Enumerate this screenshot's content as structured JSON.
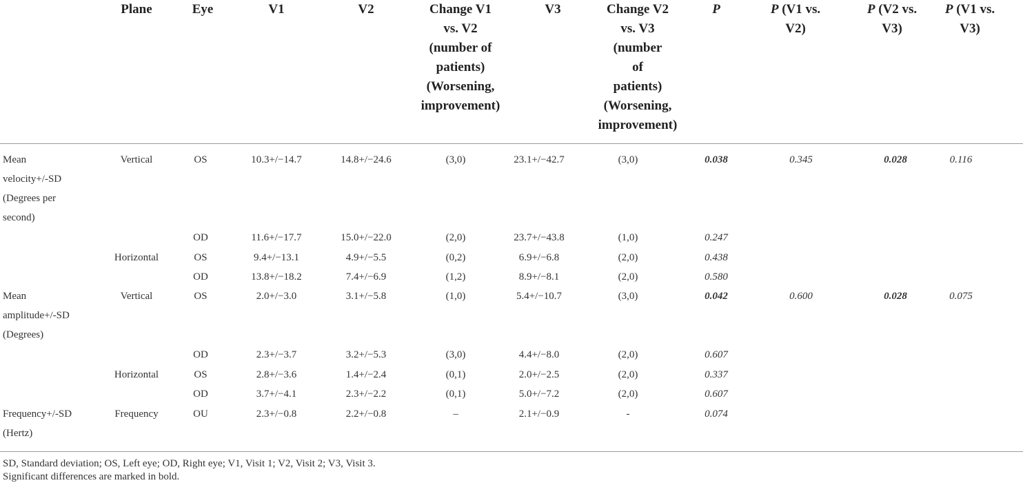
{
  "table": {
    "headers": [
      [
        "Plane"
      ],
      [
        "Eye"
      ],
      [
        "V1"
      ],
      [
        "V2"
      ],
      [
        "Change V1",
        "vs. V2",
        "(number of",
        "patients)",
        "(Worsening,",
        "improvement)"
      ],
      [
        "V3"
      ],
      [
        "Change V2",
        "vs. V3",
        "(number",
        "of",
        "patients)",
        "(Worsening,",
        "improvement)"
      ],
      [
        {
          "text": "P",
          "italic": true
        }
      ],
      [
        {
          "text": "P",
          "italic": true,
          "rest": " (V1 vs."
        },
        "V2)"
      ],
      [
        {
          "text": "P",
          "italic": true,
          "rest": " (V2 vs."
        },
        "V3)"
      ],
      [
        {
          "text": "P",
          "italic": true,
          "rest": " (V1 vs."
        },
        "V3)"
      ]
    ],
    "measures": [
      [
        "Mean",
        "velocity+/-SD",
        "(Degrees per",
        "second)"
      ],
      [
        "Mean",
        "amplitude+/-SD",
        "(Degrees)"
      ],
      [
        "Frequency+/-SD",
        "(Hertz)"
      ]
    ],
    "rows": [
      {
        "plane": "Vertical",
        "eye": "OS",
        "v1": "10.3+/−14.7",
        "v2": "14.8+/−24.6",
        "c12": "(3,0)",
        "v3": "23.1+/−42.7",
        "c23": "(3,0)",
        "p": "0.038",
        "p_bold": true,
        "p12": "0.345",
        "p23": "0.028",
        "p23_bold": true,
        "p13": "0.116"
      },
      {
        "plane": "",
        "eye": "OD",
        "v1": "11.6+/−17.7",
        "v2": "15.0+/−22.0",
        "c12": "(2,0)",
        "v3": "23.7+/−43.8",
        "c23": "(1,0)",
        "p": "0.247",
        "p_bold": false,
        "p12": "",
        "p23": "",
        "p23_bold": false,
        "p13": ""
      },
      {
        "plane": "Horizontal",
        "eye": "OS",
        "v1": "9.4+/−13.1",
        "v2": "4.9+/−5.5",
        "c12": "(0,2)",
        "v3": "6.9+/−6.8",
        "c23": "(2,0)",
        "p": "0.438",
        "p_bold": false,
        "p12": "",
        "p23": "",
        "p23_bold": false,
        "p13": ""
      },
      {
        "plane": "",
        "eye": "OD",
        "v1": "13.8+/−18.2",
        "v2": "7.4+/−6.9",
        "c12": "(1,2)",
        "v3": "8.9+/−8.1",
        "c23": "(2,0)",
        "p": "0.580",
        "p_bold": false,
        "p12": "",
        "p23": "",
        "p23_bold": false,
        "p13": ""
      },
      {
        "plane": "Vertical",
        "eye": "OS",
        "v1": "2.0+/−3.0",
        "v2": "3.1+/−5.8",
        "c12": "(1,0)",
        "v3": "5.4+/−10.7",
        "c23": "(3,0)",
        "p": "0.042",
        "p_bold": true,
        "p12": "0.600",
        "p23": "0.028",
        "p23_bold": true,
        "p13": "0.075"
      },
      {
        "plane": "",
        "eye": "OD",
        "v1": "2.3+/−3.7",
        "v2": "3.2+/−5.3",
        "c12": "(3,0)",
        "v3": "4.4+/−8.0",
        "c23": "(2,0)",
        "p": "0.607",
        "p_bold": false,
        "p12": "",
        "p23": "",
        "p23_bold": false,
        "p13": ""
      },
      {
        "plane": "Horizontal",
        "eye": "OS",
        "v1": "2.8+/−3.6",
        "v2": "1.4+/−2.4",
        "c12": "(0,1)",
        "v3": "2.0+/−2.5",
        "c23": "(2,0)",
        "p": "0.337",
        "p_bold": false,
        "p12": "",
        "p23": "",
        "p23_bold": false,
        "p13": ""
      },
      {
        "plane": "",
        "eye": "OD",
        "v1": "3.7+/−4.1",
        "v2": "2.3+/−2.2",
        "c12": "(0,1)",
        "v3": "5.0+/−7.2",
        "c23": "(2,0)",
        "p": "0.607",
        "p_bold": false,
        "p12": "",
        "p23": "",
        "p23_bold": false,
        "p13": ""
      },
      {
        "plane": "Frequency",
        "eye": "OU",
        "v1": "2.3+/−0.8",
        "v2": "2.2+/−0.8",
        "c12": "–",
        "v3": "2.1+/−0.9",
        "c23": "-",
        "p": "0.074",
        "p_bold": false,
        "p12": "",
        "p23": "",
        "p23_bold": false,
        "p13": ""
      }
    ]
  },
  "footnotes": [
    "SD, Standard deviation; OS, Left eye; OD, Right eye; V1, Visit 1; V2, Visit 2; V3, Visit 3.",
    "Significant differences are marked in bold."
  ]
}
